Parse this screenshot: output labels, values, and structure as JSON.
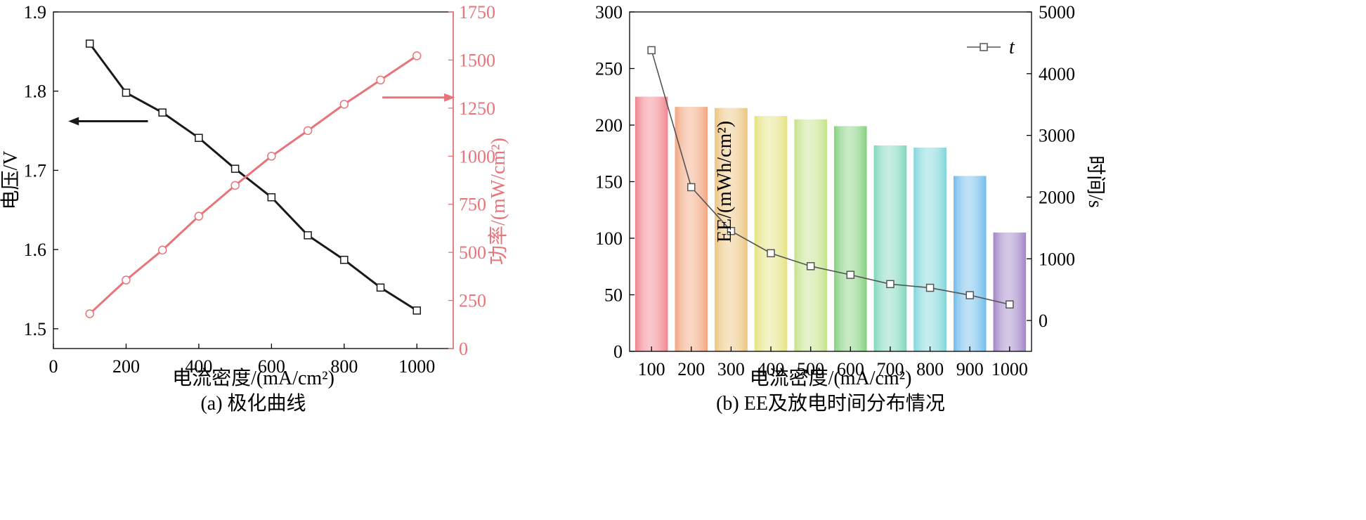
{
  "chart_data": [
    {
      "type": "line",
      "caption": "(a) 极化曲线",
      "xlabel": "电流密度/(mA/cm²)",
      "ylabel_left": "电压/V",
      "ylabel_right": "功率/(mW/cm²)",
      "xlim": [
        0,
        1100
      ],
      "xticks": [
        0,
        200,
        400,
        600,
        800,
        1000
      ],
      "ylim_left": [
        1.475,
        1.9
      ],
      "yticks_left": [
        1.5,
        1.6,
        1.7,
        1.8,
        1.9
      ],
      "ylim_right": [
        0,
        1750
      ],
      "yticks_right": [
        0,
        250,
        500,
        750,
        1000,
        1250,
        1500,
        1750
      ],
      "x": [
        100,
        200,
        300,
        400,
        500,
        600,
        700,
        800,
        900,
        1000
      ],
      "series": [
        {
          "axis": "left",
          "color": "#1a1a1a",
          "marker": "square",
          "values": [
            1.86,
            1.798,
            1.773,
            1.741,
            1.702,
            1.666,
            1.618,
            1.587,
            1.552,
            1.523
          ]
        },
        {
          "axis": "right",
          "color": "#e8747a",
          "marker": "circle",
          "values": [
            181,
            356,
            512,
            688,
            848,
            1000,
            1133,
            1270,
            1396,
            1522
          ]
        }
      ],
      "annotations": [
        {
          "type": "arrow",
          "direction": "left",
          "axis": "left",
          "color": "#1a1a1a"
        },
        {
          "type": "arrow",
          "direction": "right",
          "axis": "right",
          "color": "#e8747a"
        }
      ]
    },
    {
      "type": "bar",
      "caption": "(b) EE及放电时间分布情况",
      "xlabel": "电流密度/(mA/cm²)",
      "ylabel_left": "EE/(mWh/cm²)",
      "ylabel_right": "时间/s",
      "categories": [
        "100",
        "200",
        "300",
        "400",
        "500",
        "600",
        "700",
        "800",
        "900",
        "1000"
      ],
      "ylim_left": [
        0,
        300
      ],
      "yticks_left": [
        0,
        50,
        100,
        150,
        200,
        250,
        300
      ],
      "ylim_right": [
        -500,
        5000
      ],
      "yticks_right": [
        0,
        1000,
        2000,
        3000,
        4000,
        5000
      ],
      "bar_values": [
        225,
        216,
        215,
        208,
        205,
        199,
        182,
        180,
        155,
        105
      ],
      "bar_colors": [
        "#f2838d",
        "#f2a57e",
        "#ecc47f",
        "#e5e27f",
        "#c4e38a",
        "#84d07e",
        "#7fd7bd",
        "#7fd6da",
        "#6fbcea",
        "#a184c6"
      ],
      "line_series": {
        "name": "t",
        "marker": "square",
        "color": "#555555",
        "values": [
          4380,
          2160,
          1450,
          1090,
          880,
          740,
          590,
          530,
          410,
          260
        ]
      }
    }
  ],
  "chart_a_labels": {
    "caption": "(a) 极化曲线",
    "xlabel": "电流密度/(mA/cm²)",
    "ylabel_left": "电压/V",
    "ylabel_right": "功率/(mW/cm²)"
  },
  "chart_b_labels": {
    "caption": "(b) EE及放电时间分布情况",
    "xlabel": "电流密度/(mA/cm²)",
    "ylabel_left": "EE/(mWh/cm²)",
    "ylabel_right": "时间/s",
    "legend_t": "t"
  }
}
